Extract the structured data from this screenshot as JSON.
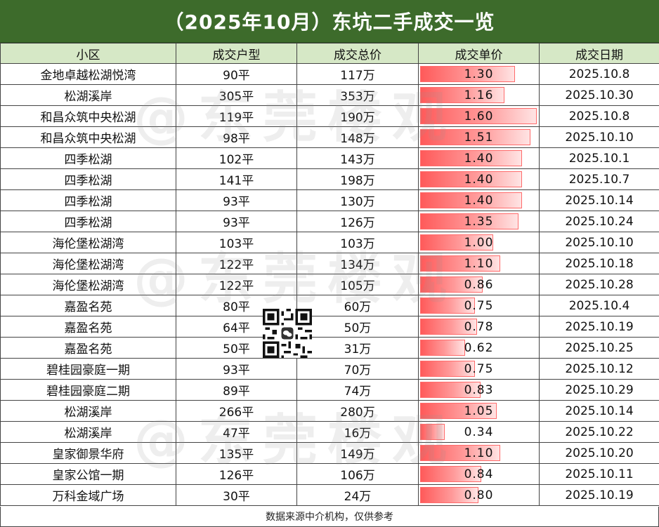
{
  "title": "（2025年10月）东坑二手成交一览",
  "headers": [
    "小区",
    "成交户型",
    "成交总价",
    "成交单价",
    "成交日期"
  ],
  "rows": [
    {
      "name": "金地卓越松湖悦湾",
      "area": "90平",
      "total": "117万",
      "unit_price": "1.30",
      "date": "2025.10.8"
    },
    {
      "name": "松湖溪岸",
      "area": "305平",
      "total": "353万",
      "unit_price": "1.16",
      "date": "2025.10.30"
    },
    {
      "name": "和昌众筑中央松湖",
      "area": "119平",
      "total": "190万",
      "unit_price": "1.60",
      "date": "2025.10.8"
    },
    {
      "name": "和昌众筑中央松湖",
      "area": "98平",
      "total": "148万",
      "unit_price": "1.51",
      "date": "2025.10.10"
    },
    {
      "name": "四季松湖",
      "area": "102平",
      "total": "143万",
      "unit_price": "1.40",
      "date": "2025.10.1"
    },
    {
      "name": "四季松湖",
      "area": "141平",
      "total": "198万",
      "unit_price": "1.40",
      "date": "2025.10.7"
    },
    {
      "name": "四季松湖",
      "area": "93平",
      "total": "130万",
      "unit_price": "1.40",
      "date": "2025.10.14"
    },
    {
      "name": "四季松湖",
      "area": "93平",
      "total": "126万",
      "unit_price": "1.35",
      "date": "2025.10.24"
    },
    {
      "name": "海伦堡松湖湾",
      "area": "103平",
      "total": "103万",
      "unit_price": "1.00",
      "date": "2025.10.10"
    },
    {
      "name": "海伦堡松湖湾",
      "area": "122平",
      "total": "134万",
      "unit_price": "1.10",
      "date": "2025.10.18"
    },
    {
      "name": "海伦堡松湖湾",
      "area": "122平",
      "total": "105万",
      "unit_price": "0.86",
      "date": "2025.10.28"
    },
    {
      "name": "嘉盈名苑",
      "area": "80平",
      "total": "60万",
      "unit_price": "0.75",
      "date": "2025.10.4"
    },
    {
      "name": "嘉盈名苑",
      "area": "64平",
      "total": "50万",
      "unit_price": "0.78",
      "date": "2025.10.19"
    },
    {
      "name": "嘉盈名苑",
      "area": "50平",
      "total": "31万",
      "unit_price": "0.62",
      "date": "2025.10.25"
    },
    {
      "name": "碧桂园豪庭一期",
      "area": "93平",
      "total": "70万",
      "unit_price": "0.75",
      "date": "2025.10.12"
    },
    {
      "name": "碧桂园豪庭二期",
      "area": "89平",
      "total": "74万",
      "unit_price": "0.83",
      "date": "2025.10.29"
    },
    {
      "name": "松湖溪岸",
      "area": "266平",
      "total": "280万",
      "unit_price": "1.05",
      "date": "2025.10.14"
    },
    {
      "name": "松湖溪岸",
      "area": "47平",
      "total": "16万",
      "unit_price": "0.34",
      "date": "2025.10.22"
    },
    {
      "name": "皇家御景华府",
      "area": "135平",
      "total": "149万",
      "unit_price": "1.10",
      "date": "2025.10.20"
    },
    {
      "name": "皇家公馆一期",
      "area": "126平",
      "total": "106万",
      "unit_price": "0.84",
      "date": "2025.10.11"
    },
    {
      "name": "万科金域广场",
      "area": "30平",
      "total": "24万",
      "unit_price": "0.80",
      "date": "2025.10.19"
    }
  ],
  "price_bar_max": 1.6,
  "footer": "数据来源中介机构，仅供参考",
  "watermark": "@东莞楼观",
  "colors": {
    "title_bg": "#3d6b2b",
    "header_bg": "#d6e8c6",
    "bar": "#ff5a5a"
  }
}
